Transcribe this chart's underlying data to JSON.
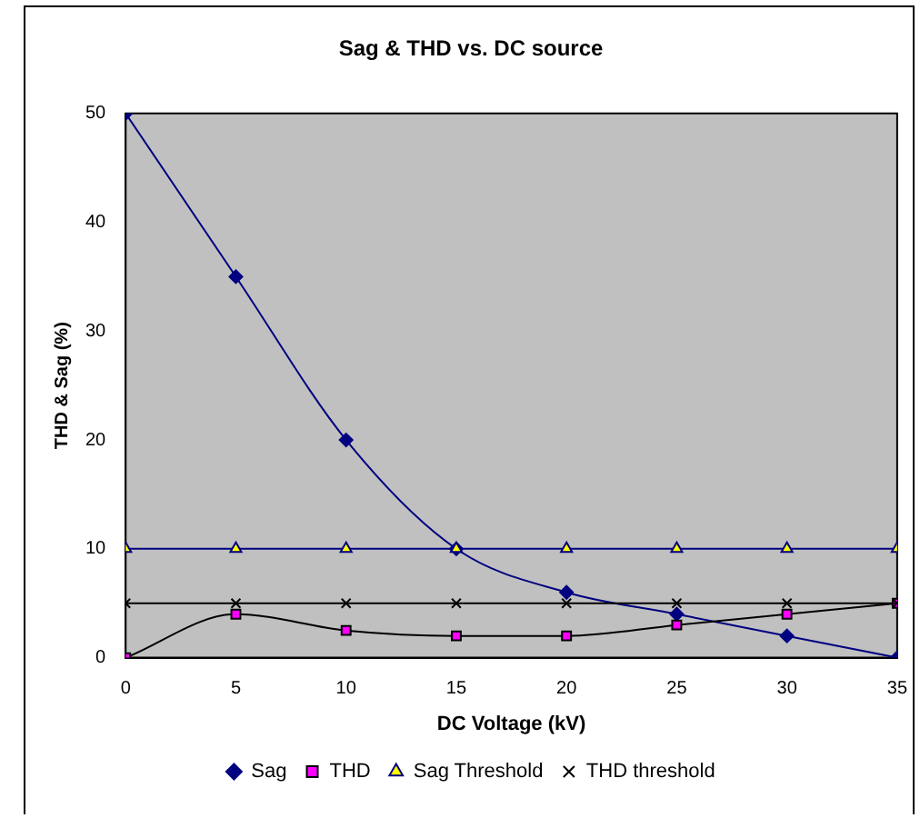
{
  "chart_data": {
    "type": "line",
    "title": "Sag & THD vs. DC source",
    "xlabel": "DC Voltage (kV)",
    "ylabel": "THD & Sag (%)",
    "x": [
      0,
      5,
      10,
      15,
      20,
      25,
      30,
      35
    ],
    "series": [
      {
        "name": "Sag",
        "color": "#000080",
        "marker": "diamond",
        "values": [
          50,
          35,
          20,
          10,
          6,
          4,
          2,
          0
        ]
      },
      {
        "name": "THD",
        "color": "#000000",
        "marker": "square",
        "values": [
          0,
          4,
          2.5,
          2,
          2,
          3,
          4,
          5
        ]
      },
      {
        "name": "Sag Threshold",
        "color": "#000080",
        "marker": "triangle",
        "values": [
          10,
          10,
          10,
          10,
          10,
          10,
          10,
          10
        ]
      },
      {
        "name": "THD threshold",
        "color": "#000000",
        "marker": "cross",
        "values": [
          5,
          5,
          5,
          5,
          5,
          5,
          5,
          5
        ]
      }
    ],
    "xlim": [
      0,
      35
    ],
    "xticks": [
      0,
      5,
      10,
      15,
      20,
      25,
      30,
      35
    ],
    "ylim": [
      0,
      50
    ],
    "yticks": [
      0,
      10,
      20,
      30,
      40,
      50
    ],
    "grid": false,
    "legend": "bottom"
  }
}
